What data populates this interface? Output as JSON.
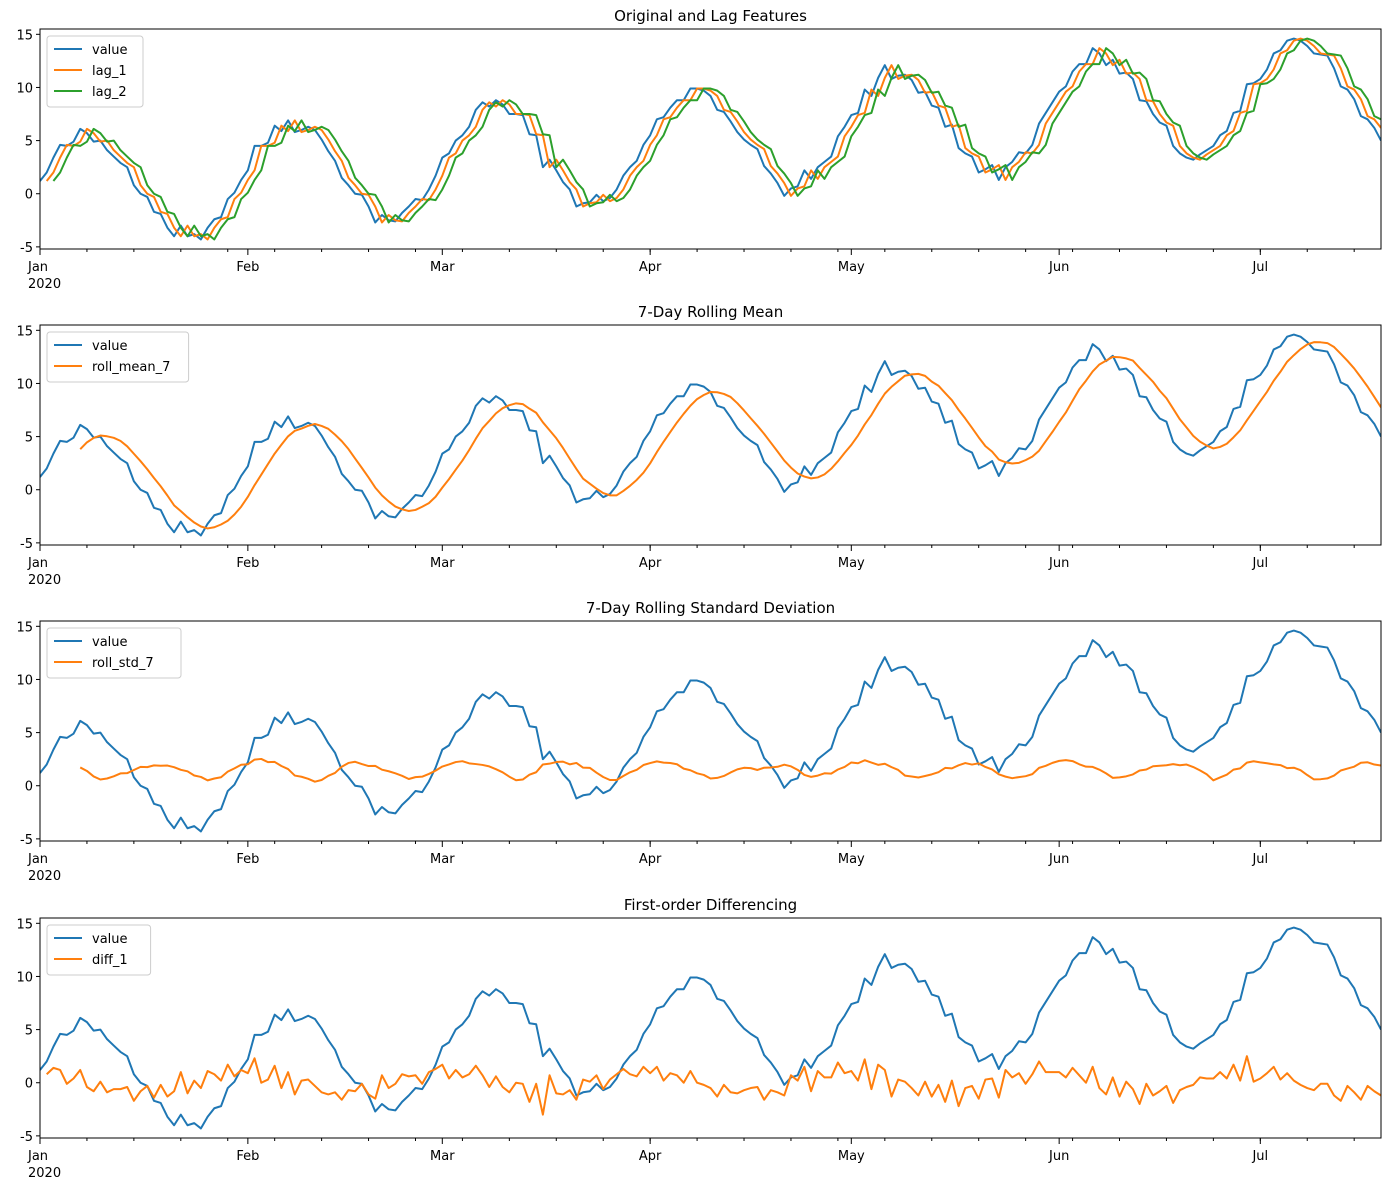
{
  "chart_data": [
    {
      "type": "line",
      "title": "Original and Lag Features",
      "xlabel": "",
      "ylabel": "",
      "x_start": "2020-01-01",
      "x_end": "2020-07-19",
      "x_year_label": "2020",
      "month_ticks": [
        {
          "label": "Jan",
          "day": 0
        },
        {
          "label": "Feb",
          "day": 31
        },
        {
          "label": "Mar",
          "day": 60
        },
        {
          "label": "Apr",
          "day": 91
        },
        {
          "label": "May",
          "day": 121
        },
        {
          "label": "Jun",
          "day": 152
        },
        {
          "label": "Jul",
          "day": 182
        }
      ],
      "y_ticks": [
        -5,
        0,
        5,
        10,
        15
      ],
      "ylim": [
        -5.2,
        15.5
      ],
      "legend_position": "upper-left",
      "series": [
        {
          "name": "value",
          "role": "value",
          "offset": 0
        },
        {
          "name": "lag_1",
          "role": "lag",
          "offset": 1
        },
        {
          "name": "lag_2",
          "role": "lag",
          "offset": 2
        }
      ]
    },
    {
      "type": "line",
      "title": "7-Day Rolling Mean",
      "xlabel": "",
      "ylabel": "",
      "x_start": "2020-01-01",
      "x_end": "2020-07-19",
      "x_year_label": "2020",
      "month_ticks": [
        {
          "label": "Jan",
          "day": 0
        },
        {
          "label": "Feb",
          "day": 31
        },
        {
          "label": "Mar",
          "day": 60
        },
        {
          "label": "Apr",
          "day": 91
        },
        {
          "label": "May",
          "day": 121
        },
        {
          "label": "Jun",
          "day": 152
        },
        {
          "label": "Jul",
          "day": 182
        }
      ],
      "y_ticks": [
        -5,
        0,
        5,
        10,
        15
      ],
      "ylim": [
        -5.2,
        15.5
      ],
      "legend_position": "upper-left",
      "series": [
        {
          "name": "value",
          "role": "value"
        },
        {
          "name": "roll_mean_7",
          "role": "rolling_mean",
          "window": 7
        }
      ]
    },
    {
      "type": "line",
      "title": "7-Day Rolling Standard Deviation",
      "xlabel": "",
      "ylabel": "",
      "x_start": "2020-01-01",
      "x_end": "2020-07-19",
      "x_year_label": "2020",
      "month_ticks": [
        {
          "label": "Jan",
          "day": 0
        },
        {
          "label": "Feb",
          "day": 31
        },
        {
          "label": "Mar",
          "day": 60
        },
        {
          "label": "Apr",
          "day": 91
        },
        {
          "label": "May",
          "day": 121
        },
        {
          "label": "Jun",
          "day": 152
        },
        {
          "label": "Jul",
          "day": 182
        }
      ],
      "y_ticks": [
        -5,
        0,
        5,
        10,
        15
      ],
      "ylim": [
        -5.2,
        15.5
      ],
      "legend_position": "upper-left",
      "series": [
        {
          "name": "value",
          "role": "value"
        },
        {
          "name": "roll_std_7",
          "role": "rolling_std",
          "window": 7
        }
      ]
    },
    {
      "type": "line",
      "title": "First-order Differencing",
      "xlabel": "",
      "ylabel": "",
      "x_start": "2020-01-01",
      "x_end": "2020-07-19",
      "x_year_label": "2020",
      "month_ticks": [
        {
          "label": "Jan",
          "day": 0
        },
        {
          "label": "Feb",
          "day": 31
        },
        {
          "label": "Mar",
          "day": 60
        },
        {
          "label": "Apr",
          "day": 91
        },
        {
          "label": "May",
          "day": 121
        },
        {
          "label": "Jun",
          "day": 152
        },
        {
          "label": "Jul",
          "day": 182
        }
      ],
      "y_ticks": [
        -5,
        0,
        5,
        10,
        15
      ],
      "ylim": [
        -5.2,
        15.5
      ],
      "legend_position": "upper-left",
      "series": [
        {
          "name": "value",
          "role": "value"
        },
        {
          "name": "diff_1",
          "role": "diff"
        }
      ]
    }
  ],
  "value_series": [
    1.2,
    2.0,
    3.4,
    4.6,
    4.5,
    4.9,
    6.1,
    5.7,
    4.9,
    5.0,
    4.1,
    3.5,
    2.9,
    2.5,
    0.8,
    0.0,
    -0.3,
    -1.7,
    -1.9,
    -3.2,
    -4.0,
    -3.0,
    -4.0,
    -3.8,
    -4.3,
    -3.2,
    -2.4,
    -2.2,
    -0.5,
    0.1,
    1.3,
    2.2,
    4.5,
    4.5,
    4.8,
    6.4,
    5.9,
    6.9,
    5.8,
    6.0,
    6.3,
    6.0,
    5.1,
    4.0,
    3.1,
    1.5,
    0.8,
    0.0,
    -0.1,
    -1.2,
    -2.7,
    -2.0,
    -2.5,
    -2.6,
    -1.8,
    -1.2,
    -0.5,
    -0.6,
    0.4,
    1.7,
    3.4,
    3.8,
    5.0,
    5.5,
    6.3,
    7.9,
    8.6,
    8.2,
    8.8,
    8.4,
    7.5,
    7.5,
    7.4,
    5.6,
    5.5,
    2.5,
    3.2,
    2.2,
    1.1,
    0.4,
    -1.2,
    -0.9,
    -0.8,
    -0.1,
    -0.7,
    -0.4,
    0.4,
    1.7,
    2.5,
    3.1,
    4.6,
    5.5,
    7.0,
    7.2,
    8.1,
    8.8,
    8.8,
    9.9,
    9.9,
    9.7,
    9.2,
    7.9,
    7.7,
    6.8,
    5.8,
    5.1,
    4.6,
    4.2,
    2.6,
    1.9,
    1.0,
    -0.2,
    0.5,
    0.7,
    2.2,
    1.4,
    2.5,
    3.0,
    3.5,
    5.4,
    6.3,
    7.4,
    7.6,
    9.8,
    9.2,
    10.9,
    12.1,
    10.8,
    11.1,
    11.2,
    10.7,
    9.5,
    9.6,
    8.3,
    8.1,
    6.3,
    6.5,
    4.3,
    3.8,
    3.5,
    2.0,
    2.3,
    2.7,
    1.3,
    2.5,
    3.0,
    3.9,
    3.8,
    4.6,
    6.6,
    7.6,
    8.6,
    9.6,
    10.1,
    11.5,
    12.2,
    12.2,
    13.7,
    13.2,
    12.1,
    12.6,
    11.3,
    11.4,
    10.8,
    8.8,
    8.7,
    7.5,
    6.7,
    6.4,
    4.5,
    3.8,
    3.4,
    3.2,
    3.7,
    4.1,
    4.5,
    5.5,
    5.9,
    7.6,
    7.8,
    10.3,
    10.4,
    10.8,
    11.7,
    13.2,
    13.5,
    14.4,
    14.6,
    14.4,
    13.9,
    13.2,
    13.1,
    13.0,
    11.8,
    10.1,
    9.8,
    8.9,
    7.3,
    7.0,
    6.2,
    5.0
  ]
}
